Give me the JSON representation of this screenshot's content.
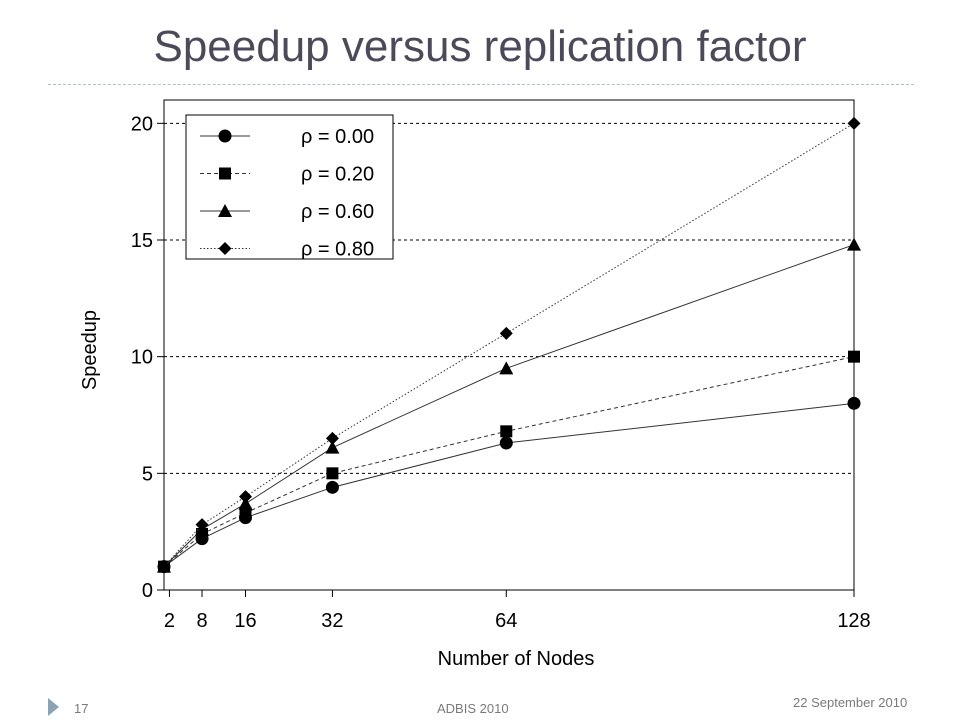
{
  "slide": {
    "title": "Speedup versus replication factor",
    "number": "17",
    "event": "ADBIS 2010",
    "date": "22 September 2010"
  },
  "colors": {
    "title": "#4a4a5a",
    "rule": "#a9c3c8",
    "footer_triangle": "#8aa3b5",
    "series_line": "#333333",
    "marker": "#000000"
  },
  "chart_data": {
    "type": "line",
    "title": "",
    "xlabel": "Number of Nodes",
    "ylabel": "Speedup",
    "xlim": [
      1,
      128
    ],
    "ylim": [
      0,
      21
    ],
    "x_ticks": [
      2,
      8,
      16,
      32,
      64,
      128
    ],
    "y_ticks": [
      0,
      5,
      10,
      15,
      20
    ],
    "grid": "horizontal dashed at 5, 10, 15, 20",
    "legend_position": "top-left",
    "series": [
      {
        "name": "ρ = 0.00",
        "marker": "circle",
        "line": "solid",
        "x": [
          1,
          8,
          16,
          32,
          64,
          128
        ],
        "y": [
          1.0,
          2.2,
          3.1,
          4.4,
          6.3,
          8.0
        ]
      },
      {
        "name": "ρ = 0.20",
        "marker": "square",
        "line": "dashed",
        "x": [
          1,
          8,
          16,
          32,
          64,
          128
        ],
        "y": [
          1.0,
          2.4,
          3.3,
          5.0,
          6.8,
          10.0
        ]
      },
      {
        "name": "ρ = 0.60",
        "marker": "triangle",
        "line": "solid",
        "x": [
          1,
          8,
          16,
          32,
          64,
          128
        ],
        "y": [
          1.0,
          2.6,
          3.7,
          6.1,
          9.5,
          14.8
        ]
      },
      {
        "name": "ρ = 0.80",
        "marker": "diamond",
        "line": "dotted",
        "x": [
          1,
          8,
          16,
          32,
          64,
          128
        ],
        "y": [
          1.0,
          2.8,
          4.0,
          6.5,
          11.0,
          20.0
        ]
      }
    ]
  }
}
